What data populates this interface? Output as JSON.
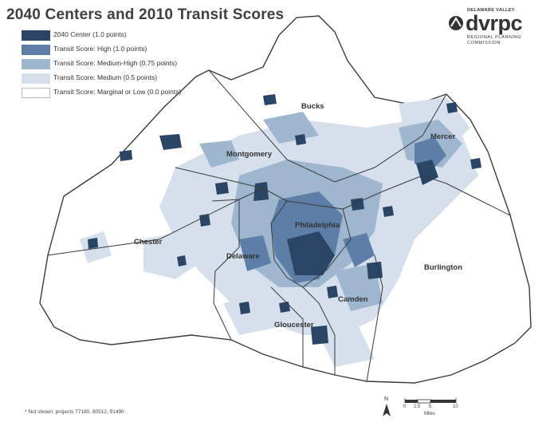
{
  "title": "2040 Centers and 2010 Transit Scores",
  "legend": [
    {
      "label": "2040 Center (1.0 points)",
      "color": "#2b4566"
    },
    {
      "label": "Transit Score: High (1.0 points)",
      "color": "#5d7ea6"
    },
    {
      "label": "Transit Score: Medium-High (0.75 points)",
      "color": "#9fb6cf"
    },
    {
      "label": "Transit Score: Medium (0.5 points)",
      "color": "#d5e0ec"
    },
    {
      "label": "Transit Score: Marginal or Low (0.0 points)",
      "color": "#ffffff"
    }
  ],
  "logo": {
    "top": "DELAWARE VALLEY",
    "name": "dvrpc",
    "sub": "REGIONAL PLANNING COMMISSION"
  },
  "counties": [
    "Bucks",
    "Mercer",
    "Montgomery",
    "Chester",
    "Delaware",
    "Philadelphia",
    "Burlington",
    "Camden",
    "Gloucester"
  ],
  "footnote": "* Not shown: projects 77180, 90512, 91490",
  "scale": {
    "ticks": [
      "0",
      "2.5",
      "5",
      "10"
    ],
    "unit": "Miles"
  },
  "north_label": "N"
}
